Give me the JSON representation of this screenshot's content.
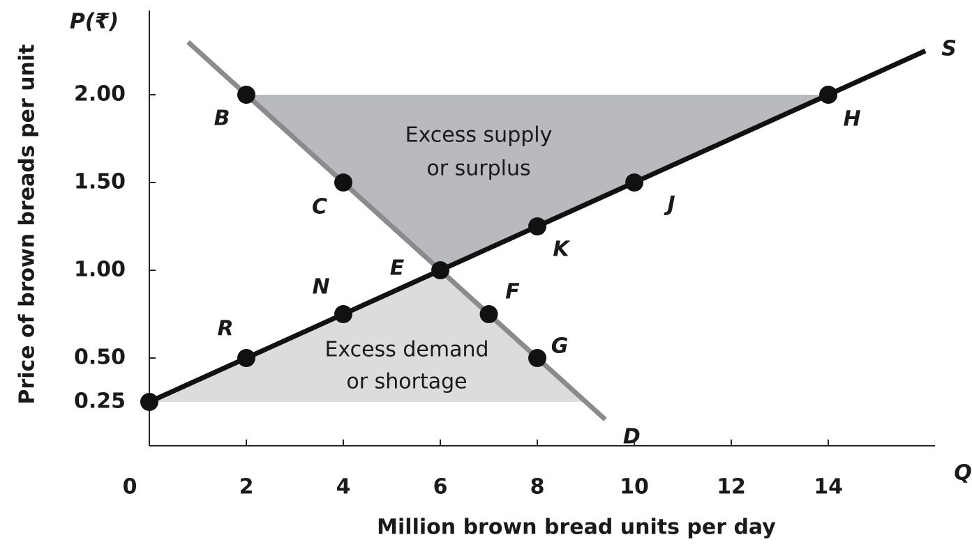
{
  "chart_data": {
    "type": "supply-demand",
    "y_symbol": "P(₹)",
    "x_symbol": "Q",
    "xlabel": "Million brown bread units per day",
    "ylabel": "Price of brown breads per unit",
    "xlim": [
      0,
      16.2
    ],
    "ylim": [
      0,
      2.5
    ],
    "xticks": [
      0,
      2,
      4,
      6,
      8,
      10,
      12,
      14
    ],
    "yticks": [
      {
        "value": 0.25,
        "label": "0.25"
      },
      {
        "value": 0.5,
        "label": "0.50"
      },
      {
        "value": 1,
        "label": "1.00"
      },
      {
        "value": 1.5,
        "label": "1.50"
      },
      {
        "value": 2,
        "label": "2.00"
      }
    ],
    "series": [
      {
        "name": "S",
        "color": "#111111",
        "x": [
          0,
          16
        ],
        "values": [
          0.25,
          2.25
        ]
      },
      {
        "name": "D",
        "color": "#8a8b8d",
        "x": [
          0.8,
          9.4
        ],
        "values": [
          2.3,
          0.15
        ]
      }
    ],
    "points": [
      {
        "label": null,
        "x": 0,
        "y": 0.25
      },
      {
        "label": "R",
        "x": 2,
        "y": 0.5
      },
      {
        "label": "N",
        "x": 4,
        "y": 0.75
      },
      {
        "label": "E",
        "x": 6,
        "y": 1
      },
      {
        "label": "K",
        "x": 8,
        "y": 1.25
      },
      {
        "label": "J",
        "x": 10,
        "y": 1.5
      },
      {
        "label": "H",
        "x": 14,
        "y": 2
      },
      {
        "label": "B",
        "x": 2,
        "y": 2
      },
      {
        "label": "C",
        "x": 4,
        "y": 1.5
      },
      {
        "label": "F",
        "x": 7,
        "y": 0.75
      },
      {
        "label": "G",
        "x": 8,
        "y": 0.5
      }
    ],
    "surplus_text": [
      "Excess supply",
      "or surplus"
    ],
    "shortage_text": [
      "Excess demand",
      "or shortage"
    ],
    "surplus_color": "#b9babd",
    "shortage_color": "#dcdcde"
  }
}
